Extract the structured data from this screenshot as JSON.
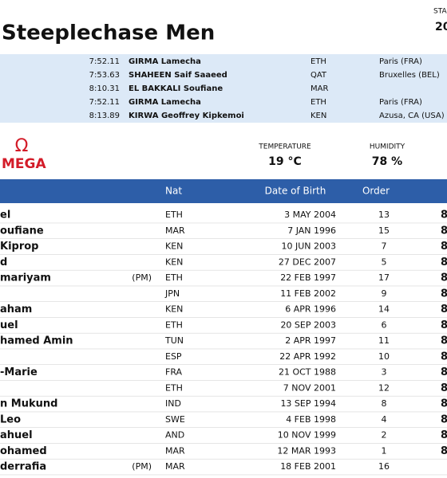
{
  "header": {
    "title": "Steeplechase Men",
    "corner_label": "STA",
    "corner_value": "20"
  },
  "records": [
    {
      "time": "7:52.11",
      "name": "GIRMA Lamecha",
      "nat": "ETH",
      "venue": "Paris (FRA)"
    },
    {
      "time": "7:53.63",
      "name": "SHAHEEN Saif Saaeed",
      "nat": "QAT",
      "venue": "Bruxelles (BEL)"
    },
    {
      "time": "8:10.31",
      "name": "EL BAKKALI Soufiane",
      "nat": "MAR"
    },
    {
      "time": "7:52.11",
      "name": "GIRMA Lamecha",
      "nat": "ETH",
      "venue": "Paris (FRA)"
    },
    {
      "time": "8:13.89",
      "name": "KIRWA Geoffrey Kipkemoi",
      "nat": "KEN",
      "venue": "Azusa, CA (USA)"
    }
  ],
  "logo": {
    "symbol": "Ω",
    "text": "MEGA"
  },
  "weather": {
    "temperature_label": "TEMPERATURE",
    "temperature": "19 °C",
    "humidity_label": "HUMIDITY",
    "humidity": "78 %"
  },
  "table": {
    "columns": [
      "Nat",
      "Date of Birth",
      "Order"
    ],
    "rows": [
      {
        "name": "el",
        "nat": "ETH",
        "dob": "3 MAY 2004",
        "order": "13",
        "mark": "8"
      },
      {
        "name": "oufiane",
        "nat": "MAR",
        "dob": "7 JAN 1996",
        "order": "15",
        "mark": "8"
      },
      {
        "name": "Kiprop",
        "nat": "KEN",
        "dob": "10 JUN 2003",
        "order": "7",
        "mark": "8"
      },
      {
        "name": "d",
        "nat": "KEN",
        "dob": "27 DEC 2007",
        "order": "5",
        "mark": "8"
      },
      {
        "name": "mariyam",
        "pm": "(PM)",
        "nat": "ETH",
        "dob": "22 FEB 1997",
        "order": "17",
        "mark": "8"
      },
      {
        "nat": "JPN",
        "dob": "11 FEB 2002",
        "order": "9",
        "mark": "8"
      },
      {
        "name": "aham",
        "nat": "KEN",
        "dob": "6 APR 1996",
        "order": "14",
        "mark": "8"
      },
      {
        "name": "uel",
        "nat": "ETH",
        "dob": "20 SEP 2003",
        "order": "6",
        "mark": "8"
      },
      {
        "name": "hamed Amin",
        "nat": "TUN",
        "dob": "2 APR 1997",
        "order": "11",
        "mark": "8"
      },
      {
        "nat": "ESP",
        "dob": "22 APR 1992",
        "order": "10",
        "mark": "8"
      },
      {
        "name": "-Marie",
        "nat": "FRA",
        "dob": "21 OCT 1988",
        "order": "3",
        "mark": "8"
      },
      {
        "nat": "ETH",
        "dob": "7 NOV 2001",
        "order": "12",
        "mark": "8"
      },
      {
        "name": "n Mukund",
        "nat": "IND",
        "dob": "13 SEP 1994",
        "order": "8",
        "mark": "8"
      },
      {
        "name": "Leo",
        "nat": "SWE",
        "dob": "4 FEB 1998",
        "order": "4",
        "mark": "8"
      },
      {
        "name": "ahuel",
        "nat": "AND",
        "dob": "10 NOV 1999",
        "order": "2",
        "mark": "8"
      },
      {
        "name": "ohamed",
        "nat": "MAR",
        "dob": "12 MAR 1993",
        "order": "1",
        "mark": "8"
      },
      {
        "name": "derrafia",
        "pm": "(PM)",
        "nat": "MAR",
        "dob": "18 FEB 2001",
        "order": "16"
      }
    ]
  }
}
